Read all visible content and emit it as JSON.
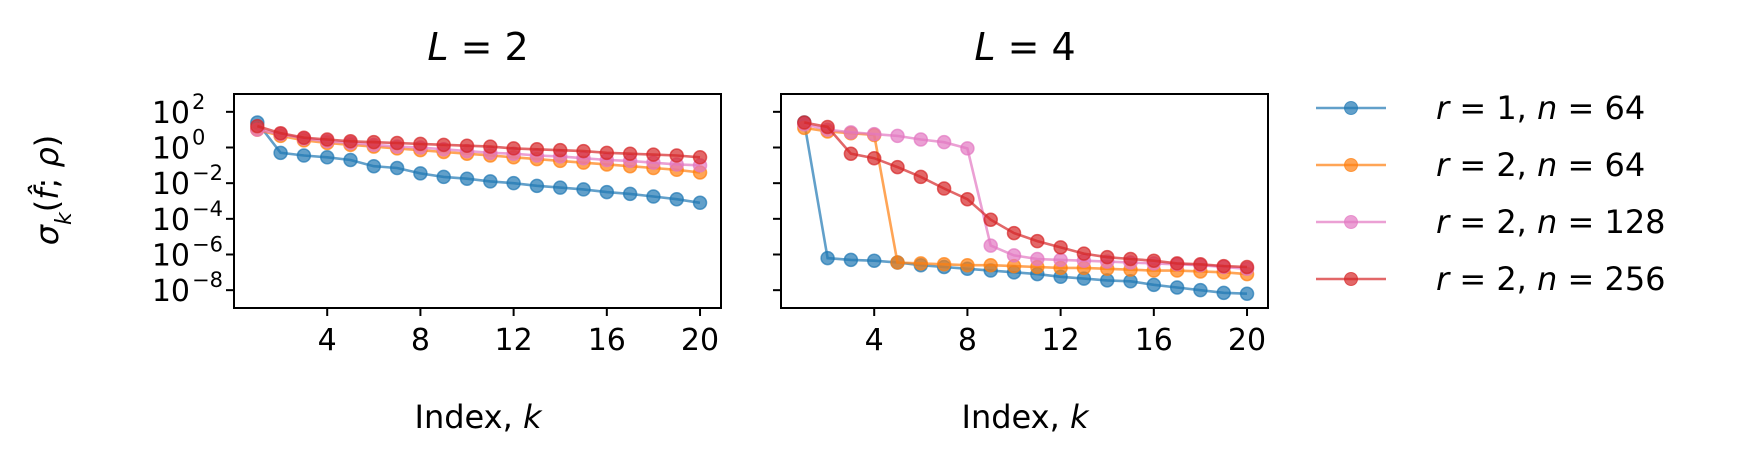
{
  "chart_data": [
    {
      "type": "line",
      "title": "L = 2",
      "title_var": "L",
      "title_rest": " = 2",
      "xlabel": "Index, ",
      "xlabel_var": "k",
      "ylabel": "σ_k(f̂; ρ)",
      "yscale": "log",
      "xlim": [
        0.0,
        20.9
      ],
      "ylim_exponent": [
        -9.0,
        3.0
      ],
      "xticks": [
        "4",
        "8",
        "12",
        "16",
        "20"
      ],
      "xtick_values": [
        4,
        8,
        12,
        16,
        20
      ],
      "yticks": [
        {
          "exp": -8,
          "base": "10",
          "sup": "−8"
        },
        {
          "exp": -6,
          "base": "10",
          "sup": "−6"
        },
        {
          "exp": -4,
          "base": "10",
          "sup": "−4"
        },
        {
          "exp": -2,
          "base": "10",
          "sup": "−2"
        },
        {
          "exp": 0,
          "base": "10",
          "sup": "0"
        },
        {
          "exp": 2,
          "base": "10",
          "sup": "2"
        }
      ],
      "x": [
        1,
        2,
        3,
        4,
        5,
        6,
        7,
        8,
        9,
        10,
        11,
        12,
        13,
        14,
        15,
        16,
        17,
        18,
        19,
        20
      ],
      "series": [
        {
          "name": "r = 1, n = 64",
          "color": "#1f77b4",
          "log10_values": [
            1.4,
            -0.3,
            -0.45,
            -0.55,
            -0.7,
            -1.05,
            -1.15,
            -1.45,
            -1.65,
            -1.75,
            -1.9,
            -2.0,
            -2.15,
            -2.25,
            -2.35,
            -2.5,
            -2.6,
            -2.75,
            -2.9,
            -3.1
          ]
        },
        {
          "name": "r = 2, n = 64",
          "color": "#ff7f0e",
          "log10_values": [
            1.0,
            0.65,
            0.4,
            0.25,
            0.15,
            0.05,
            -0.05,
            -0.15,
            -0.25,
            -0.35,
            -0.45,
            -0.55,
            -0.65,
            -0.75,
            -0.85,
            -0.95,
            -1.05,
            -1.15,
            -1.25,
            -1.4
          ]
        },
        {
          "name": "r = 2, n = 128",
          "color": "#e377c2",
          "log10_values": [
            1.0,
            0.75,
            0.5,
            0.35,
            0.25,
            0.15,
            0.05,
            0.0,
            -0.1,
            -0.2,
            -0.3,
            -0.35,
            -0.45,
            -0.5,
            -0.6,
            -0.7,
            -0.75,
            -0.85,
            -0.95,
            -1.0
          ]
        },
        {
          "name": "r = 2, n = 256",
          "color": "#d62728",
          "log10_values": [
            1.2,
            0.8,
            0.55,
            0.45,
            0.35,
            0.3,
            0.25,
            0.2,
            0.15,
            0.1,
            0.05,
            -0.05,
            -0.1,
            -0.15,
            -0.2,
            -0.3,
            -0.35,
            -0.4,
            -0.45,
            -0.55
          ]
        }
      ]
    },
    {
      "type": "line",
      "title": "L = 4",
      "title_var": "L",
      "title_rest": " = 4",
      "xlabel": "Index, ",
      "xlabel_var": "k",
      "yscale": "log",
      "xlim": [
        0.0,
        20.9
      ],
      "ylim_exponent": [
        -9.0,
        3.0
      ],
      "xticks": [
        "4",
        "8",
        "12",
        "16",
        "20"
      ],
      "xtick_values": [
        4,
        8,
        12,
        16,
        20
      ],
      "x": [
        1,
        2,
        3,
        4,
        5,
        6,
        7,
        8,
        9,
        10,
        11,
        12,
        13,
        14,
        15,
        16,
        17,
        18,
        19,
        20
      ],
      "series": [
        {
          "name": "r = 1, n = 64",
          "color": "#1f77b4",
          "log10_values": [
            1.4,
            -6.2,
            -6.3,
            -6.35,
            -6.45,
            -6.6,
            -6.7,
            -6.8,
            -6.9,
            -7.0,
            -7.1,
            -7.25,
            -7.35,
            -7.45,
            -7.5,
            -7.7,
            -7.85,
            -8.0,
            -8.15,
            -8.2
          ]
        },
        {
          "name": "r = 2, n = 64",
          "color": "#ff7f0e",
          "log10_values": [
            1.1,
            0.9,
            0.8,
            0.7,
            -6.45,
            -6.5,
            -6.55,
            -6.6,
            -6.6,
            -6.65,
            -6.7,
            -6.75,
            -6.75,
            -6.8,
            -6.85,
            -6.9,
            -6.9,
            -6.95,
            -7.0,
            -7.1
          ]
        },
        {
          "name": "r = 2, n = 128",
          "color": "#e377c2",
          "log10_values": [
            1.3,
            1.0,
            0.85,
            0.75,
            0.65,
            0.45,
            0.3,
            -0.05,
            -5.5,
            -6.05,
            -6.25,
            -6.3,
            -6.35,
            -6.4,
            -6.45,
            -6.5,
            -6.55,
            -6.6,
            -6.7,
            -6.8
          ]
        },
        {
          "name": "r = 2, n = 256",
          "color": "#d62728",
          "log10_values": [
            1.4,
            1.15,
            -0.35,
            -0.6,
            -1.1,
            -1.65,
            -2.3,
            -2.9,
            -4.05,
            -4.8,
            -5.25,
            -5.6,
            -5.95,
            -6.15,
            -6.25,
            -6.35,
            -6.5,
            -6.55,
            -6.65,
            -6.7
          ]
        }
      ]
    }
  ],
  "legend": [
    {
      "pre": "r",
      "mid": " = 1, ",
      "var2": "n",
      "post": " = 64",
      "color": "#1f77b4"
    },
    {
      "pre": "r",
      "mid": " = 2, ",
      "var2": "n",
      "post": " = 64",
      "color": "#ff7f0e"
    },
    {
      "pre": "r",
      "mid": " = 2, ",
      "var2": "n",
      "post": " = 128",
      "color": "#e377c2"
    },
    {
      "pre": "r",
      "mid": " = 2, ",
      "var2": "n",
      "post": " = 256",
      "color": "#d62728"
    }
  ]
}
